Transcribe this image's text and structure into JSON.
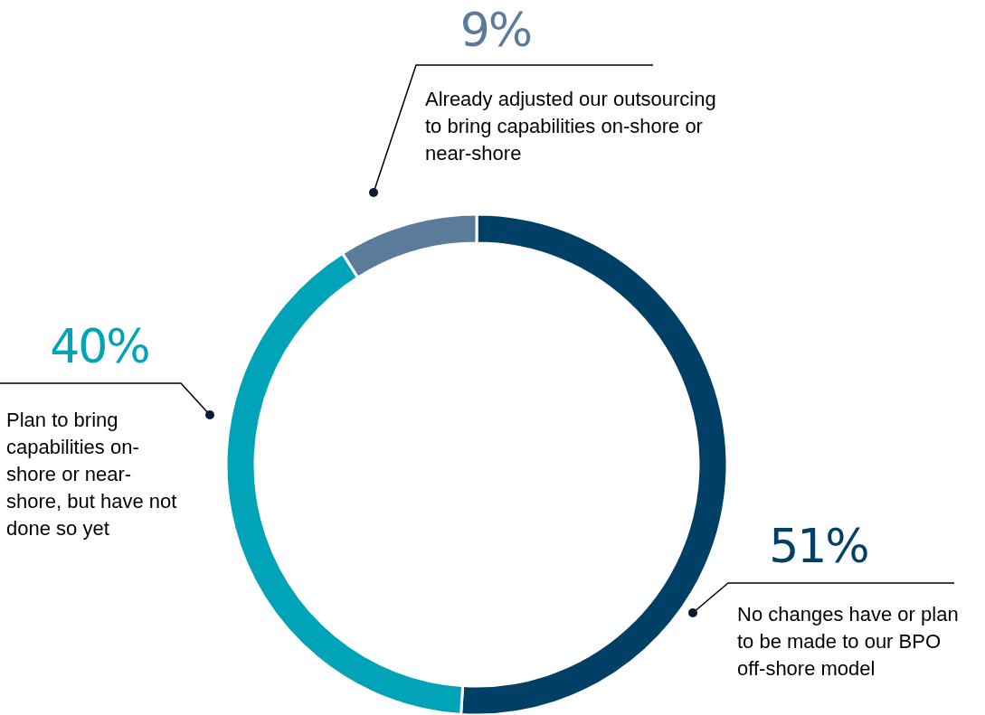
{
  "chart_data": {
    "type": "donut",
    "categories": [
      "No changes have or plan to  be made to our BPO off-shore model",
      "Plan to bring capabilities on-shore or near-shore, but have not done so yet",
      "Already adjusted our outsourcing to bring capabilities on-shore or near-shore"
    ],
    "values": [
      51,
      40,
      9
    ],
    "value_labels": [
      "51%",
      "40%",
      "9%"
    ],
    "colors": [
      "#003f66",
      "#00a3b8",
      "#5b7b9b"
    ],
    "legend": false
  }
}
